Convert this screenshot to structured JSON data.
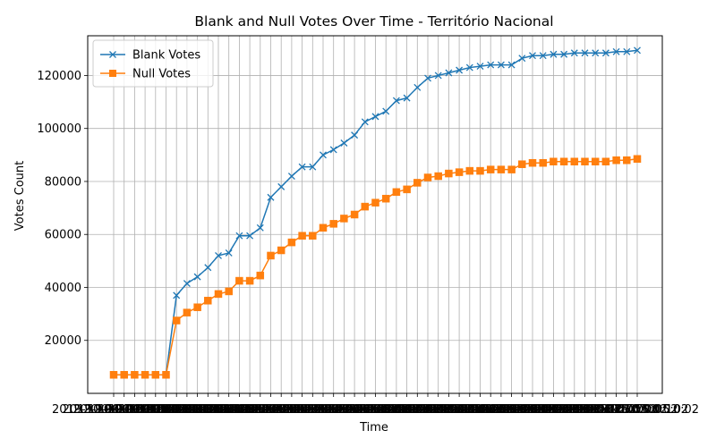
{
  "chart_data": {
    "type": "line",
    "title": "Blank and Null Votes Over Time - Território Nacional",
    "xlabel": "Time",
    "ylabel": "Votes Count",
    "ylim": [
      0,
      135000
    ],
    "yticks": [
      20000,
      40000,
      60000,
      80000,
      100000,
      120000
    ],
    "grid": true,
    "legend_position": "upper left",
    "x_tick_labels_overlapping": true,
    "x": [
      "2019-10-06 20:00:02",
      "2019-10-06 20:05:02",
      "2019-10-06 20:10:02",
      "2019-10-06 20:15:02",
      "2019-10-06 20:20:02",
      "2019-10-06 20:25:02",
      "2019-10-06 20:30:02",
      "2019-10-06 20:35:02",
      "2019-10-06 20:40:02",
      "2019-10-06 20:45:02",
      "2019-10-06 20:50:02",
      "2019-10-06 20:55:02",
      "2019-10-06 21:00:02",
      "2019-10-06 21:05:02",
      "2019-10-06 21:10:02",
      "2019-10-06 21:15:02",
      "2019-10-06 21:20:02",
      "2019-10-06 21:25:02",
      "2019-10-06 21:30:02",
      "2019-10-06 21:35:02",
      "2019-10-06 21:40:02",
      "2019-10-06 21:45:02",
      "2019-10-06 21:50:02",
      "2019-10-06 21:55:02",
      "2019-10-06 22:00:02",
      "2019-10-06 22:05:02",
      "2019-10-06 22:10:02",
      "2019-10-06 22:15:02",
      "2019-10-06 22:20:02",
      "2019-10-06 22:25:02",
      "2019-10-06 22:30:02",
      "2019-10-06 22:35:02",
      "2019-10-06 22:40:02",
      "2019-10-06 22:45:02",
      "2019-10-06 22:50:02",
      "2019-10-06 22:55:02",
      "2019-10-06 23:00:02",
      "2019-10-06 23:05:02",
      "2019-10-06 23:10:02",
      "2019-10-06 23:15:02",
      "2019-10-06 23:20:02",
      "2019-10-06 23:25:02",
      "2019-10-06 23:30:02",
      "2019-10-06 23:35:02",
      "2019-10-06 23:40:02",
      "2019-10-06 23:45:02",
      "2019-10-06 23:50:02",
      "2019-10-06 23:55:02",
      "2019-10-07 00:00:02",
      "2019-10-07 00:05:02",
      "2019-10-07 00:10:02"
    ],
    "series": [
      {
        "name": "Blank Votes",
        "color": "#1f77b4",
        "marker": "x",
        "values": [
          7000,
          7000,
          7000,
          7000,
          7000,
          7000,
          37000,
          41500,
          44000,
          47500,
          52000,
          53000,
          59500,
          59500,
          62500,
          74000,
          78000,
          82000,
          85500,
          85500,
          90000,
          92000,
          94500,
          97500,
          102500,
          104500,
          106500,
          110500,
          111500,
          115500,
          119000,
          120000,
          121000,
          122000,
          123000,
          123500,
          124000,
          124000,
          124000,
          126500,
          127500,
          127500,
          128000,
          128000,
          128500,
          128500,
          128500,
          128500,
          129000,
          129000,
          129500
        ]
      },
      {
        "name": "Null Votes",
        "color": "#ff7f0e",
        "marker": "s",
        "values": [
          7000,
          7000,
          7000,
          7000,
          7000,
          7000,
          27500,
          30500,
          32500,
          35000,
          37500,
          38500,
          42500,
          42500,
          44500,
          52000,
          54000,
          57000,
          59500,
          59500,
          62500,
          64000,
          66000,
          67500,
          70500,
          72000,
          73500,
          76000,
          77000,
          79500,
          81500,
          82000,
          83000,
          83500,
          84000,
          84000,
          84500,
          84500,
          84500,
          86500,
          87000,
          87000,
          87500,
          87500,
          87500,
          87500,
          87500,
          87500,
          88000,
          88000,
          88500
        ]
      }
    ]
  }
}
